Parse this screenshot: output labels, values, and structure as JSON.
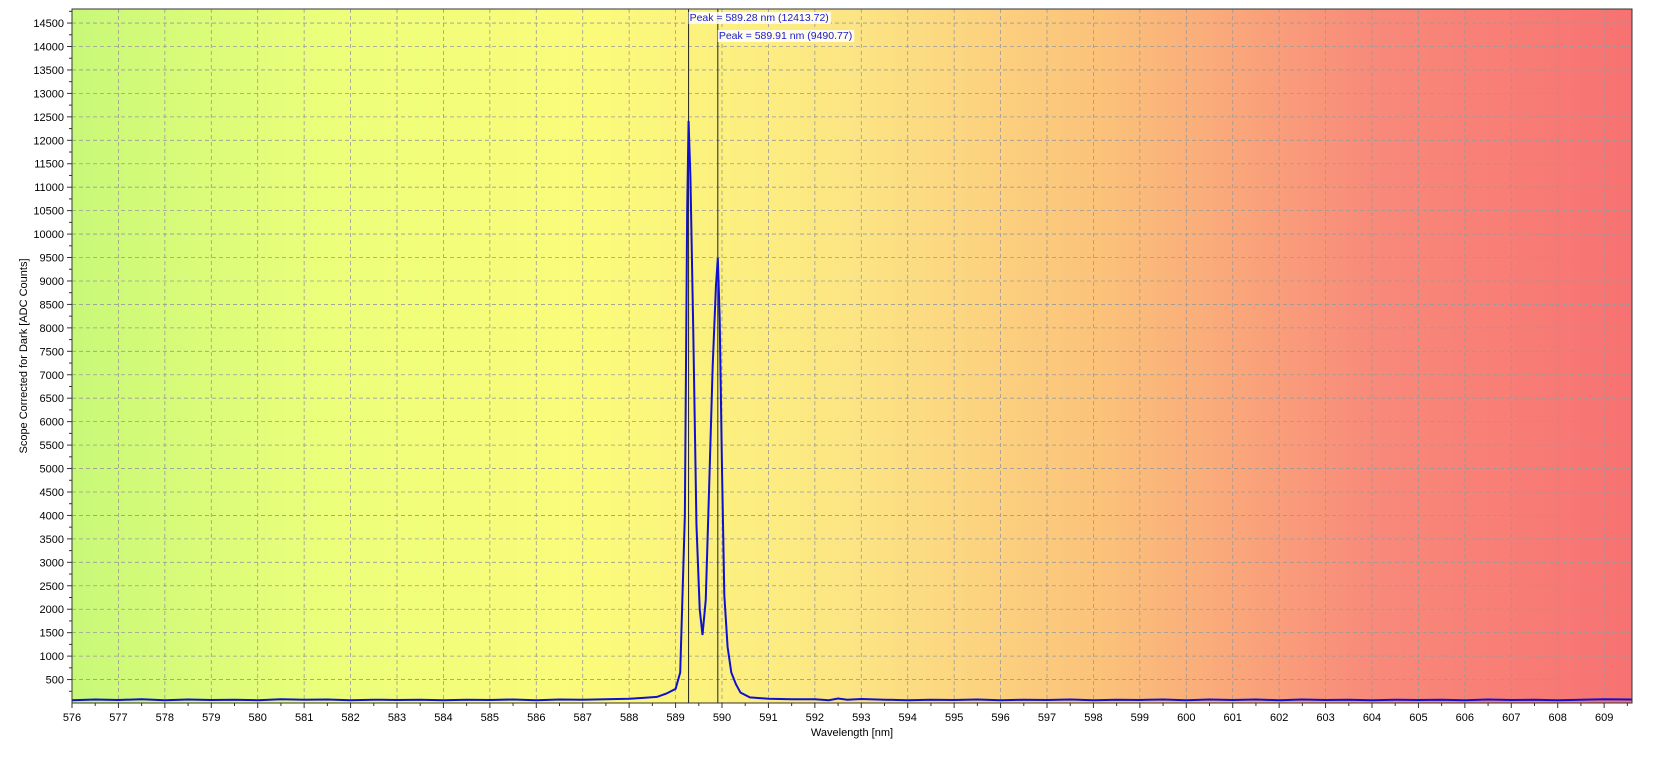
{
  "chart_data": {
    "type": "line",
    "title": "",
    "xlabel": "Wavelength [nm]",
    "ylabel": "Scope Corrected for Dark [ADC Counts]",
    "xlim": [
      576,
      609.6
    ],
    "ylim": [
      0,
      14800
    ],
    "grid": true,
    "background_gradient": [
      "#c8f878",
      "#ecff7a",
      "#fbfb7a",
      "#fce584",
      "#fbc07a",
      "#f88a7a",
      "#f77272"
    ],
    "series_color": "#1010d0",
    "x_ticks": [
      576,
      577,
      578,
      579,
      580,
      581,
      582,
      583,
      584,
      585,
      586,
      587,
      588,
      589,
      590,
      591,
      592,
      593,
      594,
      595,
      596,
      597,
      598,
      599,
      600,
      601,
      602,
      603,
      604,
      605,
      606,
      607,
      608,
      609
    ],
    "y_ticks": [
      500,
      1000,
      1500,
      2000,
      2500,
      3000,
      3500,
      4000,
      4500,
      5000,
      5500,
      6000,
      6500,
      7000,
      7500,
      8000,
      8500,
      9000,
      9500,
      10000,
      10500,
      11000,
      11500,
      12000,
      12500,
      13000,
      13500,
      14000,
      14500
    ],
    "series": [
      {
        "points": [
          [
            576.0,
            60
          ],
          [
            576.5,
            75
          ],
          [
            577.0,
            65
          ],
          [
            577.5,
            80
          ],
          [
            578.0,
            60
          ],
          [
            578.5,
            75
          ],
          [
            579.0,
            65
          ],
          [
            579.5,
            70
          ],
          [
            580.0,
            60
          ],
          [
            580.5,
            80
          ],
          [
            581.0,
            70
          ],
          [
            581.5,
            75
          ],
          [
            582.0,
            60
          ],
          [
            582.5,
            70
          ],
          [
            583.0,
            65
          ],
          [
            583.5,
            70
          ],
          [
            584.0,
            60
          ],
          [
            584.5,
            70
          ],
          [
            585.0,
            65
          ],
          [
            585.5,
            75
          ],
          [
            586.0,
            60
          ],
          [
            586.5,
            75
          ],
          [
            587.0,
            70
          ],
          [
            587.5,
            80
          ],
          [
            588.0,
            90
          ],
          [
            588.3,
            110
          ],
          [
            588.6,
            130
          ],
          [
            588.8,
            200
          ],
          [
            589.0,
            300
          ],
          [
            589.1,
            650
          ],
          [
            589.2,
            4000
          ],
          [
            589.25,
            10500
          ],
          [
            589.28,
            12413.72
          ],
          [
            589.32,
            11200
          ],
          [
            589.38,
            8000
          ],
          [
            589.45,
            3800
          ],
          [
            589.52,
            2000
          ],
          [
            589.58,
            1450
          ],
          [
            589.65,
            2200
          ],
          [
            589.72,
            4500
          ],
          [
            589.8,
            7200
          ],
          [
            589.87,
            8900
          ],
          [
            589.91,
            9490.77
          ],
          [
            589.95,
            8200
          ],
          [
            590.0,
            5000
          ],
          [
            590.05,
            2300
          ],
          [
            590.12,
            1200
          ],
          [
            590.2,
            650
          ],
          [
            590.3,
            400
          ],
          [
            590.4,
            220
          ],
          [
            590.6,
            120
          ],
          [
            591.0,
            90
          ],
          [
            591.5,
            80
          ],
          [
            592.0,
            80
          ],
          [
            592.3,
            60
          ],
          [
            592.5,
            95
          ],
          [
            592.7,
            70
          ],
          [
            593.0,
            85
          ],
          [
            593.5,
            70
          ],
          [
            594.0,
            60
          ],
          [
            594.5,
            70
          ],
          [
            595.0,
            65
          ],
          [
            595.5,
            75
          ],
          [
            596.0,
            60
          ],
          [
            596.5,
            70
          ],
          [
            597.0,
            65
          ],
          [
            597.5,
            75
          ],
          [
            598.0,
            60
          ],
          [
            598.5,
            70
          ],
          [
            599.0,
            65
          ],
          [
            599.5,
            75
          ],
          [
            600.0,
            60
          ],
          [
            600.5,
            75
          ],
          [
            601.0,
            65
          ],
          [
            601.5,
            75
          ],
          [
            602.0,
            60
          ],
          [
            602.5,
            75
          ],
          [
            603.0,
            65
          ],
          [
            603.5,
            70
          ],
          [
            604.0,
            60
          ],
          [
            604.5,
            70
          ],
          [
            605.0,
            65
          ],
          [
            605.5,
            70
          ],
          [
            606.0,
            60
          ],
          [
            606.5,
            75
          ],
          [
            607.0,
            65
          ],
          [
            607.5,
            70
          ],
          [
            608.0,
            60
          ],
          [
            608.5,
            70
          ],
          [
            609.0,
            80
          ],
          [
            609.6,
            75
          ]
        ]
      }
    ],
    "peaks": [
      {
        "x": 589.28,
        "y": 12413.72,
        "label": "Peak = 589.28 nm (12413.72)"
      },
      {
        "x": 589.91,
        "y": 9490.77,
        "label": "Peak = 589.91 nm (9490.77)"
      }
    ]
  }
}
